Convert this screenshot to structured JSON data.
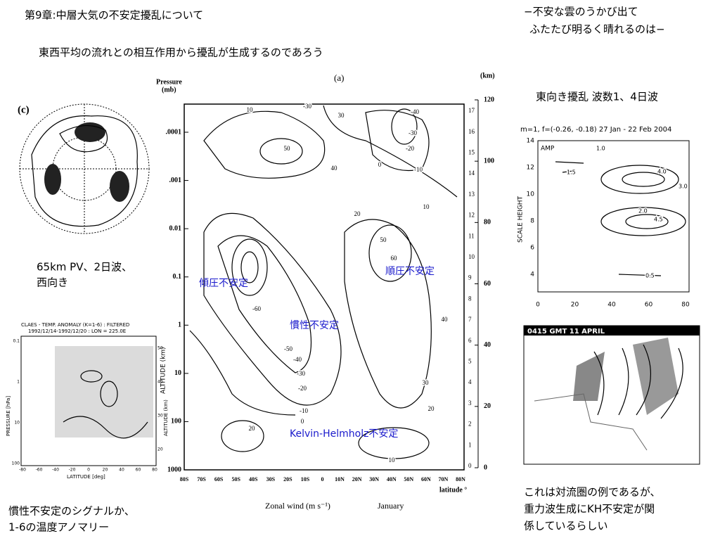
{
  "header": {
    "title": "第9章:中層大気の不安定擾乱について",
    "subtitle": "東西平均の流れとの相互作用から擾乱が生成するのであろう"
  },
  "quote": {
    "lines": [
      "−不安な雲のうかび出て",
      "ふたたび明るく晴れるのは−"
    ]
  },
  "captions": {
    "pv": [
      "65km PV、2日波、",
      "西向き"
    ],
    "claes": [
      "慣性不安定のシグナルか、",
      "1-6の温度アノマリー"
    ],
    "eastward": "東向き擾乱 波数1、4日波",
    "convection": [
      "これは対流圏の例であるが、",
      "重力波生成にKH不安定が関",
      "係しているらしい"
    ]
  },
  "panel_c": {
    "label": "(c)"
  },
  "main_figure": {
    "panel": "(a)",
    "y_label": "Pressure",
    "y_unit": "(mb)",
    "y2_label": "(km)",
    "altitude_label": "ALTITUDE (km)",
    "x_title": "latitude °",
    "x_label": "Zonal wind (m s⁻¹)",
    "month": "January",
    "pressure_ticks": [
      ".0001",
      ".001",
      "0.01",
      "0.1",
      "1",
      "10",
      "100",
      "1000"
    ],
    "km_ticks": [
      "0",
      "20",
      "40",
      "60",
      "80",
      "100",
      "120"
    ],
    "inner_ticks": [
      "0",
      "1",
      "2",
      "3",
      "4",
      "5",
      "6",
      "7",
      "8",
      "9",
      "10",
      "11",
      "12",
      "13",
      "14",
      "15",
      "16",
      "17"
    ],
    "latitudes": [
      "80S",
      "70S",
      "60S",
      "50S",
      "40S",
      "30S",
      "20S",
      "10S",
      "0",
      "10N",
      "20N",
      "30N",
      "40N",
      "50N",
      "60N",
      "70N",
      "80N"
    ],
    "contour_labels": [
      "10",
      "-30",
      "30",
      "-40",
      "50",
      "40",
      "-30",
      "-20",
      "-10",
      "0",
      "20",
      "10",
      "50",
      "60",
      "-60",
      "-50",
      "-40",
      "-30",
      "-20",
      "-10",
      "0",
      "20",
      "30",
      "40",
      "20",
      "10"
    ],
    "instabilities": [
      "傾圧不安定",
      "順圧不安定",
      "慣性不安定",
      "Kelvin-Helmholz不安定"
    ]
  },
  "amp_figure": {
    "title": "m=1, f=(-0.26, -0.18)  27 Jan - 22 Feb 2004",
    "panel": "AMP",
    "y_label": "SCALE HEIGHT",
    "yticks": [
      "14",
      "12",
      "10",
      "8",
      "6",
      "4"
    ],
    "xticks": [
      "0",
      "20",
      "40",
      "60",
      "80"
    ],
    "contour_labels": [
      "1.0",
      "1.5",
      "4.0",
      "3.0",
      "2.0",
      "4.5",
      "0.5"
    ]
  },
  "claes_figure": {
    "title": [
      "CLAES - TEMP. ANOMALY (K=1-6) : FILTERED",
      "1992/12/14-1992/12/20 : LON = 225.0E"
    ],
    "y_label": "PRESSURE [hPa]",
    "y2_label": "ALTITUDE (km)",
    "x_label": "LATITUDE [deg]",
    "xticks": [
      "-80",
      "-60",
      "-40",
      "-20",
      "0",
      "20",
      "40",
      "60",
      "80"
    ],
    "yticks": [
      "0.1",
      "1",
      "10",
      "100"
    ],
    "y2ticks": [
      "50",
      "40",
      "30",
      "20"
    ]
  },
  "storm_figure": {
    "title": "0415 GMT 11 APRIL"
  }
}
